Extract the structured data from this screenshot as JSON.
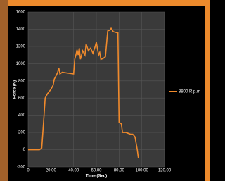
{
  "chart_data": {
    "type": "line",
    "x_label": "Time (Sec)",
    "y_label": "Force (N)",
    "x": [
      0,
      10,
      12,
      14,
      15,
      17,
      20,
      22,
      23,
      25,
      26,
      27,
      28,
      30,
      40,
      41,
      42,
      43,
      44,
      45,
      46,
      48,
      50,
      51,
      53,
      55,
      57,
      59,
      60,
      62,
      63,
      64,
      66,
      68,
      70,
      72,
      73,
      75,
      78,
      79,
      80,
      82,
      83,
      86,
      90,
      92,
      94,
      96,
      97
    ],
    "series": [
      {
        "name": "8800 R.p.m",
        "color": "#f08a2c",
        "values": [
          0,
          0,
          20,
          400,
          600,
          650,
          700,
          750,
          820,
          870,
          900,
          950,
          880,
          900,
          880,
          1050,
          1100,
          1160,
          1100,
          1180,
          1050,
          1150,
          1100,
          1230,
          1150,
          1180,
          1120,
          1200,
          1250,
          1100,
          1130,
          1050,
          1060,
          1080,
          1380,
          1390,
          1410,
          1370,
          1360,
          1360,
          320,
          300,
          200,
          200,
          180,
          180,
          150,
          0,
          -100
        ]
      }
    ],
    "xlim": [
      0,
      120
    ],
    "ylim": [
      -200,
      1600
    ],
    "xticks": [
      0,
      {
        "value": 20,
        "label": "20.00"
      },
      {
        "value": 40,
        "label": "40.00"
      },
      {
        "value": 60,
        "label": "60.00"
      },
      {
        "value": 80,
        "label": "80.00"
      },
      {
        "value": 100,
        "label": "100.00"
      },
      {
        "value": 120,
        "label": "120.00"
      }
    ],
    "yticks": [
      -200,
      0,
      200,
      400,
      600,
      800,
      1000,
      1200,
      1400,
      1600
    ],
    "grid": true
  }
}
